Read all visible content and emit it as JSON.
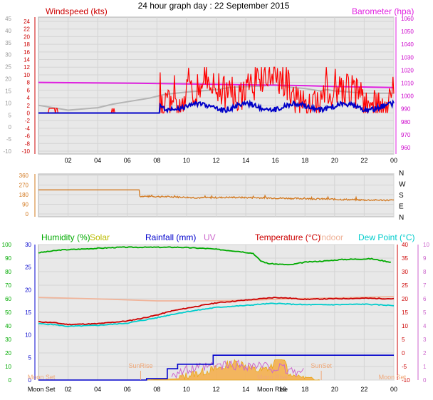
{
  "title": "24 hour graph day : 22 September 2015",
  "colors": {
    "wind": "#ff0000",
    "gust_axis": "#ff0000",
    "baro": "#e020e0",
    "avg_wind": "#0000c8",
    "gray_line": "#b4b4b4",
    "direction": "#d2781e",
    "humidity": "#00aa00",
    "solar": "#bbbb00",
    "rainfall": "#0000cc",
    "uv": "#cc66cc",
    "temperature": "#cc0000",
    "indoor": "#f0b49a",
    "dewpoint": "#00cccc",
    "solar_fill": "#f5b050",
    "frame": "#ffffff",
    "plot_bg": "#e8e8e8",
    "text_gray": "#999999"
  },
  "chart_data": [
    {
      "type": "line",
      "title": "24 hour graph day : 22 September 2015",
      "legend": [
        {
          "label": "Windspeed (kts)",
          "color": "#cc0000",
          "position": "top-left"
        },
        {
          "label": "Barometer (hpa)",
          "color": "#e020e0",
          "position": "top-right"
        }
      ],
      "x_ticks": [
        "02",
        "04",
        "06",
        "08",
        "10",
        "12",
        "14",
        "16",
        "18",
        "20",
        "22",
        "00"
      ],
      "y_left_outer": {
        "ticks": [
          "-10",
          "-5",
          "0",
          "5",
          "10",
          "15",
          "20",
          "25",
          "30",
          "35",
          "40",
          "45"
        ],
        "ylim": [
          -10,
          45
        ]
      },
      "y_left_inner": {
        "ticks": [
          "-10",
          "-8",
          "-6",
          "-4",
          "-2",
          "0",
          "2",
          "4",
          "6",
          "8",
          "10",
          "12",
          "14",
          "16",
          "18",
          "20",
          "22",
          "24"
        ],
        "ylim": [
          -10,
          24
        ]
      },
      "y_right": {
        "ticks": [
          "960",
          "970",
          "980",
          "990",
          "1000",
          "1010",
          "1020",
          "1030",
          "1040",
          "1050",
          "1060"
        ],
        "ylim": [
          955,
          1060
        ]
      },
      "series": [
        {
          "key": "barometer",
          "axis": "baro",
          "points": [
            [
              0,
              1010.5
            ],
            [
              6.5,
              1009.8
            ],
            [
              12,
              1009.0
            ],
            [
              15,
              1008.5
            ],
            [
              18,
              1008.0
            ],
            [
              20,
              1007.3
            ],
            [
              24,
              1006.5
            ]
          ]
        },
        {
          "key": "gray",
          "axis": "left_outer",
          "points": [
            [
              0,
              9
            ],
            [
              2,
              7
            ],
            [
              4,
              8
            ],
            [
              5,
              9.5
            ],
            [
              6,
              10.5
            ],
            [
              7.5,
              12
            ],
            [
              8.5,
              13.5
            ],
            [
              10,
              14.5
            ],
            [
              12,
              15.5
            ],
            [
              13,
              16.5
            ],
            [
              15,
              17
            ],
            [
              16,
              17.5
            ],
            [
              17,
              16.5
            ],
            [
              18,
              16
            ],
            [
              19,
              15
            ],
            [
              19.5,
              15.5
            ],
            [
              20,
              15
            ],
            [
              21,
              14.5
            ],
            [
              22,
              14
            ],
            [
              24,
              14
            ]
          ]
        },
        {
          "key": "windspeed",
          "axis": "left_inner",
          "generated": "gusts 0 before 08:15 with spikes at 00:45-01:15 and 05:00, then 0-12 kts"
        },
        {
          "key": "avg_wind",
          "axis": "left_inner",
          "generated": "0 before 08:15 then 0-3 kts"
        }
      ]
    },
    {
      "type": "line",
      "x_ticks": [
        "02",
        "04",
        "06",
        "08",
        "10",
        "12",
        "14",
        "16",
        "18",
        "20",
        "22",
        "00"
      ],
      "y_left": {
        "ticks": [
          "0",
          "90",
          "180",
          "270",
          "360"
        ],
        "ylim": [
          0,
          360
        ]
      },
      "y_right": {
        "ticks": [
          "N",
          "E",
          "S",
          "W",
          "N"
        ]
      },
      "series": [
        {
          "key": "direction",
          "points": [
            [
              0,
              225
            ],
            [
              6.8,
              225
            ],
            [
              6.8,
              165
            ],
            [
              9,
              160
            ],
            [
              11,
              150
            ],
            [
              13,
              155
            ],
            [
              16,
              148
            ],
            [
              19,
              140
            ],
            [
              22,
              130
            ],
            [
              24,
              128
            ]
          ]
        }
      ]
    },
    {
      "type": "line",
      "legend": [
        {
          "label": "Humidity (%)",
          "color": "#00aa00"
        },
        {
          "label": "Solar",
          "color": "#bbbb00"
        },
        {
          "label": "Rainfall (mm)",
          "color": "#0000cc"
        },
        {
          "label": "UV",
          "color": "#cc66cc"
        },
        {
          "label": "Temperature (°C)",
          "color": "#cc0000"
        },
        {
          "label": "Indoor",
          "color": "#f0b49a"
        },
        {
          "label": "Dew Point (°C)",
          "color": "#00cccc"
        }
      ],
      "x_ticks": [
        "Moon Set",
        "02",
        "04",
        "06",
        "08",
        "10",
        "12",
        "14",
        "Moon Rise",
        "16",
        "18",
        "20",
        "22",
        "00"
      ],
      "y_outer_left": {
        "ticks": [
          "0",
          "10",
          "20",
          "30",
          "40",
          "50",
          "60",
          "70",
          "80",
          "90",
          "100"
        ],
        "ylim": [
          0,
          100
        ]
      },
      "y_inner_left": {
        "ticks": [
          "0",
          "5",
          "10",
          "15",
          "20",
          "25",
          "30"
        ],
        "ylim": [
          0,
          30
        ]
      },
      "y_right": {
        "ticks": [
          "-10",
          "-5",
          "0",
          "5",
          "10",
          "15",
          "20",
          "25",
          "30",
          "35",
          "40"
        ],
        "ylim": [
          -10,
          40
        ]
      },
      "y_uv": {
        "ticks": [
          "0",
          "1",
          "2",
          "3",
          "4",
          "5",
          "6",
          "7",
          "8",
          "9",
          "10"
        ],
        "ylim": [
          0,
          10
        ]
      },
      "annotations": [
        {
          "label": "SunRise",
          "x": 6.9
        },
        {
          "label": "SunSet",
          "x": 19.1
        },
        {
          "label": "Moon Set",
          "x": 0.2
        },
        {
          "label": "Moon Rise",
          "x": 15.8
        },
        {
          "label": "Moon Set",
          "x": 23.9
        }
      ],
      "series": [
        {
          "key": "humidity",
          "axis": "pct",
          "points": [
            [
              0,
              94
            ],
            [
              1.5,
              96
            ],
            [
              5.5,
              98
            ],
            [
              9.5,
              98
            ],
            [
              10.5,
              97.5
            ],
            [
              11.5,
              97
            ],
            [
              13.5,
              95
            ],
            [
              14.5,
              93.5
            ],
            [
              15,
              88
            ],
            [
              15.5,
              86
            ],
            [
              17,
              85
            ],
            [
              18,
              87
            ],
            [
              19.5,
              88
            ],
            [
              20.5,
              89
            ],
            [
              22.5,
              89.5
            ],
            [
              23.8,
              87
            ]
          ]
        },
        {
          "key": "indoor",
          "axis": "temp",
          "points": [
            [
              0,
              20.5
            ],
            [
              5,
              19.8
            ],
            [
              8,
              19.2
            ],
            [
              11,
              19.2
            ],
            [
              14,
              19.4
            ],
            [
              17,
              20
            ],
            [
              20,
              20.3
            ],
            [
              24,
              20.8
            ]
          ]
        },
        {
          "key": "temperature",
          "axis": "temp",
          "points": [
            [
              0,
              11.5
            ],
            [
              1,
              11.2
            ],
            [
              2,
              10.5
            ],
            [
              4,
              10.8
            ],
            [
              6,
              11.8
            ],
            [
              7,
              12.8
            ],
            [
              8,
              14
            ],
            [
              9,
              15.5
            ],
            [
              10,
              16.5
            ],
            [
              11,
              17.5
            ],
            [
              12,
              18.5
            ],
            [
              13,
              19
            ],
            [
              14,
              19.5
            ],
            [
              15,
              20
            ],
            [
              16,
              20.5
            ],
            [
              17,
              20.2
            ],
            [
              18,
              19.8
            ],
            [
              20,
              20
            ],
            [
              22,
              20.2
            ],
            [
              24,
              20
            ]
          ]
        },
        {
          "key": "dewpoint",
          "axis": "temp",
          "points": [
            [
              0,
              10.8
            ],
            [
              1,
              10.5
            ],
            [
              2,
              9.8
            ],
            [
              4,
              10.2
            ],
            [
              6,
              11
            ],
            [
              7,
              12
            ],
            [
              8,
              13
            ],
            [
              9,
              14.2
            ],
            [
              10,
              15.2
            ],
            [
              11,
              16
            ],
            [
              12,
              16.8
            ],
            [
              13,
              17.2
            ],
            [
              14,
              17.5
            ],
            [
              15,
              18
            ],
            [
              16,
              18.3
            ],
            [
              17,
              18
            ],
            [
              18,
              17.8
            ],
            [
              20,
              17.8
            ],
            [
              22,
              18
            ],
            [
              24,
              17.5
            ]
          ]
        },
        {
          "key": "rainfall",
          "axis": "mm",
          "points": [
            [
              0,
              0
            ],
            [
              7.3,
              0
            ],
            [
              7.3,
              0.3
            ],
            [
              8.7,
              0.3
            ],
            [
              8.7,
              2.5
            ],
            [
              9.4,
              2.5
            ],
            [
              9.4,
              3.5
            ],
            [
              11.8,
              3.5
            ],
            [
              11.8,
              5.5
            ],
            [
              24,
              5.5
            ]
          ]
        },
        {
          "key": "solar",
          "axis": "pct",
          "generated": "0 before 07:00 and after 19:00, peaks near 14 mid-day"
        }
      ]
    }
  ]
}
